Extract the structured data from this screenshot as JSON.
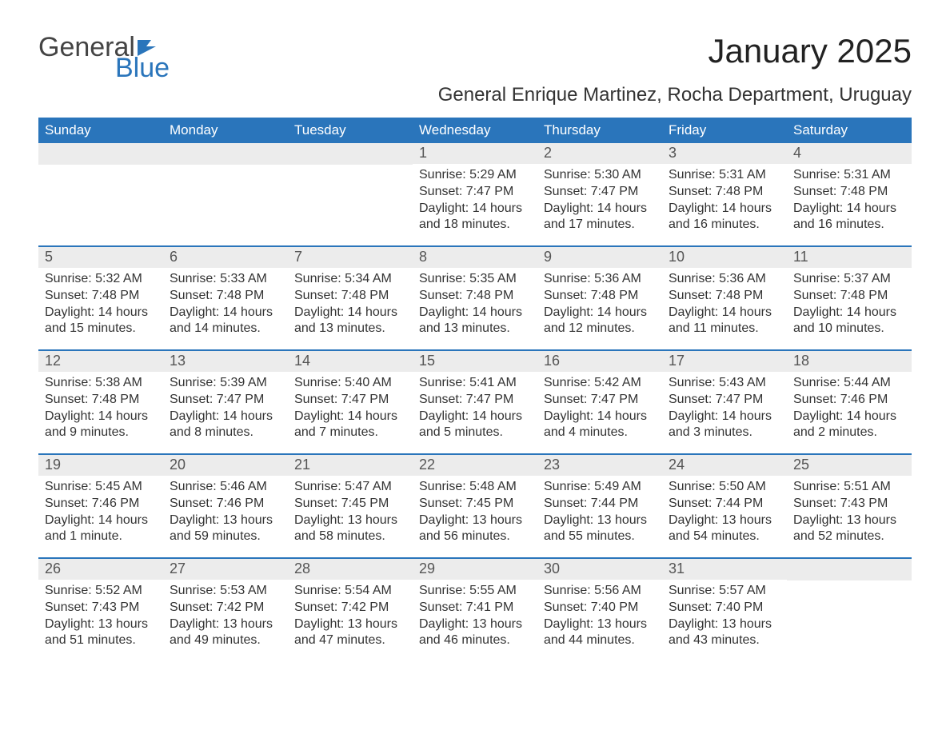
{
  "logo": {
    "part1": "General",
    "part2": "Blue"
  },
  "title": "January 2025",
  "subtitle": "General Enrique Martinez, Rocha Department, Uruguay",
  "colors": {
    "accent": "#2a75bb",
    "daynum_bg": "#ececec",
    "text": "#333333",
    "background": "#ffffff"
  },
  "dayNames": [
    "Sunday",
    "Monday",
    "Tuesday",
    "Wednesday",
    "Thursday",
    "Friday",
    "Saturday"
  ],
  "weeks": [
    [
      {
        "n": "",
        "sr": "",
        "ss": "",
        "dl": ""
      },
      {
        "n": "",
        "sr": "",
        "ss": "",
        "dl": ""
      },
      {
        "n": "",
        "sr": "",
        "ss": "",
        "dl": ""
      },
      {
        "n": "1",
        "sr": "Sunrise: 5:29 AM",
        "ss": "Sunset: 7:47 PM",
        "dl": "Daylight: 14 hours and 18 minutes."
      },
      {
        "n": "2",
        "sr": "Sunrise: 5:30 AM",
        "ss": "Sunset: 7:47 PM",
        "dl": "Daylight: 14 hours and 17 minutes."
      },
      {
        "n": "3",
        "sr": "Sunrise: 5:31 AM",
        "ss": "Sunset: 7:48 PM",
        "dl": "Daylight: 14 hours and 16 minutes."
      },
      {
        "n": "4",
        "sr": "Sunrise: 5:31 AM",
        "ss": "Sunset: 7:48 PM",
        "dl": "Daylight: 14 hours and 16 minutes."
      }
    ],
    [
      {
        "n": "5",
        "sr": "Sunrise: 5:32 AM",
        "ss": "Sunset: 7:48 PM",
        "dl": "Daylight: 14 hours and 15 minutes."
      },
      {
        "n": "6",
        "sr": "Sunrise: 5:33 AM",
        "ss": "Sunset: 7:48 PM",
        "dl": "Daylight: 14 hours and 14 minutes."
      },
      {
        "n": "7",
        "sr": "Sunrise: 5:34 AM",
        "ss": "Sunset: 7:48 PM",
        "dl": "Daylight: 14 hours and 13 minutes."
      },
      {
        "n": "8",
        "sr": "Sunrise: 5:35 AM",
        "ss": "Sunset: 7:48 PM",
        "dl": "Daylight: 14 hours and 13 minutes."
      },
      {
        "n": "9",
        "sr": "Sunrise: 5:36 AM",
        "ss": "Sunset: 7:48 PM",
        "dl": "Daylight: 14 hours and 12 minutes."
      },
      {
        "n": "10",
        "sr": "Sunrise: 5:36 AM",
        "ss": "Sunset: 7:48 PM",
        "dl": "Daylight: 14 hours and 11 minutes."
      },
      {
        "n": "11",
        "sr": "Sunrise: 5:37 AM",
        "ss": "Sunset: 7:48 PM",
        "dl": "Daylight: 14 hours and 10 minutes."
      }
    ],
    [
      {
        "n": "12",
        "sr": "Sunrise: 5:38 AM",
        "ss": "Sunset: 7:48 PM",
        "dl": "Daylight: 14 hours and 9 minutes."
      },
      {
        "n": "13",
        "sr": "Sunrise: 5:39 AM",
        "ss": "Sunset: 7:47 PM",
        "dl": "Daylight: 14 hours and 8 minutes."
      },
      {
        "n": "14",
        "sr": "Sunrise: 5:40 AM",
        "ss": "Sunset: 7:47 PM",
        "dl": "Daylight: 14 hours and 7 minutes."
      },
      {
        "n": "15",
        "sr": "Sunrise: 5:41 AM",
        "ss": "Sunset: 7:47 PM",
        "dl": "Daylight: 14 hours and 5 minutes."
      },
      {
        "n": "16",
        "sr": "Sunrise: 5:42 AM",
        "ss": "Sunset: 7:47 PM",
        "dl": "Daylight: 14 hours and 4 minutes."
      },
      {
        "n": "17",
        "sr": "Sunrise: 5:43 AM",
        "ss": "Sunset: 7:47 PM",
        "dl": "Daylight: 14 hours and 3 minutes."
      },
      {
        "n": "18",
        "sr": "Sunrise: 5:44 AM",
        "ss": "Sunset: 7:46 PM",
        "dl": "Daylight: 14 hours and 2 minutes."
      }
    ],
    [
      {
        "n": "19",
        "sr": "Sunrise: 5:45 AM",
        "ss": "Sunset: 7:46 PM",
        "dl": "Daylight: 14 hours and 1 minute."
      },
      {
        "n": "20",
        "sr": "Sunrise: 5:46 AM",
        "ss": "Sunset: 7:46 PM",
        "dl": "Daylight: 13 hours and 59 minutes."
      },
      {
        "n": "21",
        "sr": "Sunrise: 5:47 AM",
        "ss": "Sunset: 7:45 PM",
        "dl": "Daylight: 13 hours and 58 minutes."
      },
      {
        "n": "22",
        "sr": "Sunrise: 5:48 AM",
        "ss": "Sunset: 7:45 PM",
        "dl": "Daylight: 13 hours and 56 minutes."
      },
      {
        "n": "23",
        "sr": "Sunrise: 5:49 AM",
        "ss": "Sunset: 7:44 PM",
        "dl": "Daylight: 13 hours and 55 minutes."
      },
      {
        "n": "24",
        "sr": "Sunrise: 5:50 AM",
        "ss": "Sunset: 7:44 PM",
        "dl": "Daylight: 13 hours and 54 minutes."
      },
      {
        "n": "25",
        "sr": "Sunrise: 5:51 AM",
        "ss": "Sunset: 7:43 PM",
        "dl": "Daylight: 13 hours and 52 minutes."
      }
    ],
    [
      {
        "n": "26",
        "sr": "Sunrise: 5:52 AM",
        "ss": "Sunset: 7:43 PM",
        "dl": "Daylight: 13 hours and 51 minutes."
      },
      {
        "n": "27",
        "sr": "Sunrise: 5:53 AM",
        "ss": "Sunset: 7:42 PM",
        "dl": "Daylight: 13 hours and 49 minutes."
      },
      {
        "n": "28",
        "sr": "Sunrise: 5:54 AM",
        "ss": "Sunset: 7:42 PM",
        "dl": "Daylight: 13 hours and 47 minutes."
      },
      {
        "n": "29",
        "sr": "Sunrise: 5:55 AM",
        "ss": "Sunset: 7:41 PM",
        "dl": "Daylight: 13 hours and 46 minutes."
      },
      {
        "n": "30",
        "sr": "Sunrise: 5:56 AM",
        "ss": "Sunset: 7:40 PM",
        "dl": "Daylight: 13 hours and 44 minutes."
      },
      {
        "n": "31",
        "sr": "Sunrise: 5:57 AM",
        "ss": "Sunset: 7:40 PM",
        "dl": "Daylight: 13 hours and 43 minutes."
      },
      {
        "n": "",
        "sr": "",
        "ss": "",
        "dl": ""
      }
    ]
  ]
}
